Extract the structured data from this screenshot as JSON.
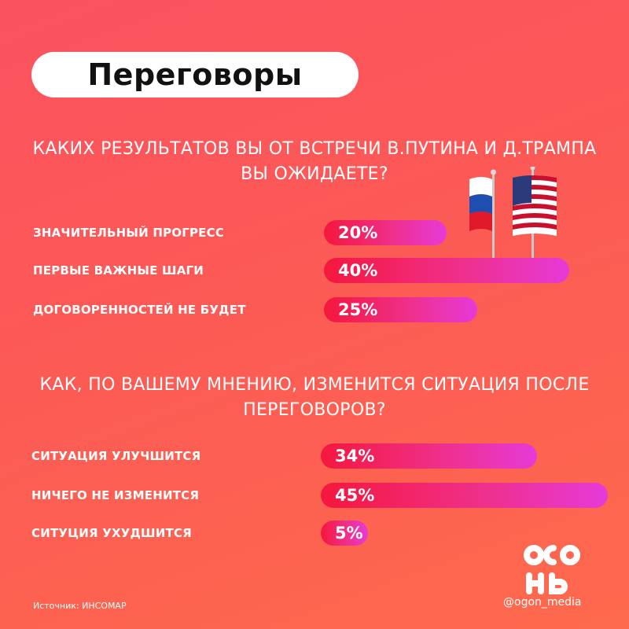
{
  "header": {
    "title": "Переговоры"
  },
  "chart_data": [
    {
      "type": "bar",
      "title": "КАКИХ РЕЗУЛЬТАТОВ ВЫ ОТ ВСТРЕЧИ В.ПУТИНА И Д.ТРАМПА ВЫ ОЖИДАЕТЕ?",
      "categories": [
        "ЗНАЧИТЕЛЬНЫЙ ПРОГРЕСС",
        "ПЕРВЫЕ ВАЖНЫЕ ШАГИ",
        "ДОГОВОРЕННОСТЕЙ НЕ БУДЕТ"
      ],
      "values": [
        20,
        40,
        25
      ],
      "value_labels": [
        "20%",
        "40%",
        "25%"
      ],
      "unit": "%"
    },
    {
      "type": "bar",
      "title": "КАК, ПО ВАШЕМУ МНЕНИЮ, ИЗМЕНИТСЯ СИТУАЦИЯ ПОСЛЕ ПЕРЕГОВОРОВ?",
      "categories": [
        "СИТУАЦИЯ УЛУЧШИТСЯ",
        "НИЧЕГО НЕ ИЗМЕНИТСЯ",
        "СИТУЦИЯ УХУДШИТСЯ"
      ],
      "values": [
        34,
        45,
        5
      ],
      "value_labels": [
        "34%",
        "45%",
        "5%"
      ],
      "unit": "%"
    }
  ],
  "footer": {
    "source": "Источник: ИНСОМАР",
    "handle": "@ogon_media",
    "logo_text": "огонь"
  },
  "colors": {
    "background": "#fc5a55",
    "bar_start": "#f5173d",
    "bar_end": "#e63ad8",
    "title_pill": "#ffffff"
  }
}
